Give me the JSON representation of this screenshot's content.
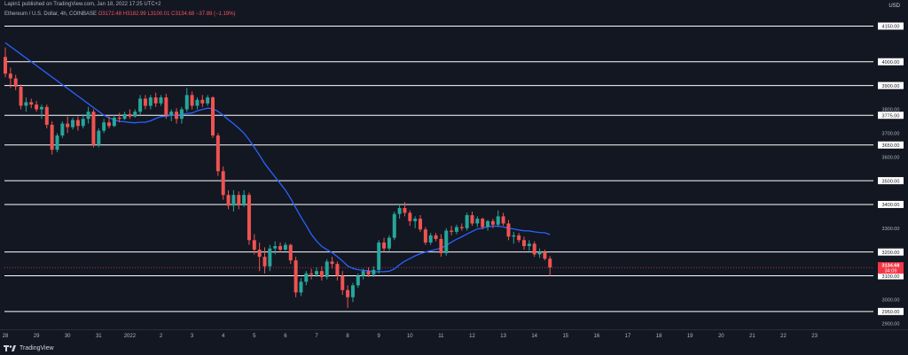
{
  "header": {
    "published_text": "Lapin1 published on TradingView.com, Jan 18, 2022 17:25 UTC+2"
  },
  "symbol": {
    "name": "Ethereum / U.S. Dollar, 4h, COINBASE",
    "open": "O3172.48",
    "high": "H3182.99",
    "low": "L3100.01",
    "close": "C3134.68",
    "change": "−37.89 (−1.19%)"
  },
  "price_axis": {
    "currency": "USD",
    "tick_labels": [
      {
        "price": 4150,
        "label": "4150.00"
      },
      {
        "price": 4000,
        "label": "4000.00"
      },
      {
        "price": 3900,
        "label": "3900.00"
      },
      {
        "price": 3800,
        "label": "3800.00"
      },
      {
        "price": 3775,
        "label": "3775.00"
      },
      {
        "price": 3700,
        "label": "3700.00"
      },
      {
        "price": 3650,
        "label": "3650.00"
      },
      {
        "price": 3600,
        "label": "3600.00"
      },
      {
        "price": 3500,
        "label": "3500.00"
      },
      {
        "price": 3400,
        "label": "3400.00"
      },
      {
        "price": 3300,
        "label": "3300.00"
      },
      {
        "price": 3200,
        "label": "3200.00"
      },
      {
        "price": 3100,
        "label": "3100.00"
      },
      {
        "price": 3000,
        "label": "3000.00"
      },
      {
        "price": 2950,
        "label": "2950.00"
      },
      {
        "price": 2900,
        "label": "2900.00"
      }
    ],
    "boxed_levels": [
      4150,
      4000,
      3900,
      3775,
      3650,
      3500,
      3400,
      3200,
      3100,
      2950
    ],
    "current_price_label": "3134.68",
    "countdown_label": "34:09"
  },
  "time_axis": {
    "labels": [
      {
        "label": "28",
        "idx": 0
      },
      {
        "label": "29",
        "idx": 6
      },
      {
        "label": "30",
        "idx": 12
      },
      {
        "label": "31",
        "idx": 18
      },
      {
        "label": "2022",
        "idx": 24
      },
      {
        "label": "2",
        "idx": 30
      },
      {
        "label": "3",
        "idx": 36
      },
      {
        "label": "4",
        "idx": 42
      },
      {
        "label": "5",
        "idx": 48
      },
      {
        "label": "6",
        "idx": 54
      },
      {
        "label": "7",
        "idx": 60
      },
      {
        "label": "8",
        "idx": 66
      },
      {
        "label": "9",
        "idx": 72
      },
      {
        "label": "10",
        "idx": 78
      },
      {
        "label": "11",
        "idx": 84
      },
      {
        "label": "12",
        "idx": 90
      },
      {
        "label": "13",
        "idx": 96
      },
      {
        "label": "14",
        "idx": 102
      },
      {
        "label": "15",
        "idx": 108
      },
      {
        "label": "16",
        "idx": 114
      },
      {
        "label": "17",
        "idx": 120
      },
      {
        "label": "18",
        "idx": 126
      },
      {
        "label": "19",
        "idx": 132
      },
      {
        "label": "20",
        "idx": 138
      },
      {
        "label": "21",
        "idx": 144
      },
      {
        "label": "22",
        "idx": 150
      },
      {
        "label": "23",
        "idx": 156
      }
    ]
  },
  "footer": {
    "brand": "TradingView"
  },
  "colors": {
    "background": "#131722",
    "up": "#26a69a",
    "down": "#ef5350",
    "ma_line": "#2962ff",
    "level_line": "#ffffff",
    "price_tag": "#f23645"
  },
  "chart_data": {
    "type": "candlestick",
    "title": "Ethereum / U.S. Dollar, 4h, COINBASE",
    "ylim": [
      2900,
      4200
    ],
    "horizontal_levels": [
      4150,
      4000,
      3900,
      3775,
      3650,
      3500,
      3400,
      3200,
      3100,
      2950
    ],
    "candles": [
      {
        "o": 4020,
        "h": 4060,
        "l": 3935,
        "c": 3950
      },
      {
        "o": 3950,
        "h": 3975,
        "l": 3890,
        "c": 3930
      },
      {
        "o": 3930,
        "h": 3945,
        "l": 3880,
        "c": 3895
      },
      {
        "o": 3895,
        "h": 3905,
        "l": 3800,
        "c": 3815
      },
      {
        "o": 3815,
        "h": 3850,
        "l": 3790,
        "c": 3830
      },
      {
        "o": 3830,
        "h": 3845,
        "l": 3805,
        "c": 3820
      },
      {
        "o": 3820,
        "h": 3835,
        "l": 3790,
        "c": 3800
      },
      {
        "o": 3800,
        "h": 3820,
        "l": 3760,
        "c": 3810
      },
      {
        "o": 3810,
        "h": 3820,
        "l": 3720,
        "c": 3735
      },
      {
        "o": 3735,
        "h": 3750,
        "l": 3610,
        "c": 3630
      },
      {
        "o": 3630,
        "h": 3700,
        "l": 3620,
        "c": 3690
      },
      {
        "o": 3690,
        "h": 3750,
        "l": 3680,
        "c": 3740
      },
      {
        "o": 3740,
        "h": 3770,
        "l": 3700,
        "c": 3725
      },
      {
        "o": 3725,
        "h": 3765,
        "l": 3715,
        "c": 3755
      },
      {
        "o": 3755,
        "h": 3770,
        "l": 3710,
        "c": 3730
      },
      {
        "o": 3730,
        "h": 3780,
        "l": 3720,
        "c": 3760
      },
      {
        "o": 3760,
        "h": 3810,
        "l": 3740,
        "c": 3790
      },
      {
        "o": 3790,
        "h": 3800,
        "l": 3640,
        "c": 3650
      },
      {
        "o": 3650,
        "h": 3720,
        "l": 3640,
        "c": 3710
      },
      {
        "o": 3710,
        "h": 3760,
        "l": 3700,
        "c": 3745
      },
      {
        "o": 3745,
        "h": 3770,
        "l": 3720,
        "c": 3730
      },
      {
        "o": 3730,
        "h": 3775,
        "l": 3725,
        "c": 3765
      },
      {
        "o": 3765,
        "h": 3785,
        "l": 3745,
        "c": 3760
      },
      {
        "o": 3760,
        "h": 3790,
        "l": 3755,
        "c": 3780
      },
      {
        "o": 3780,
        "h": 3800,
        "l": 3760,
        "c": 3770
      },
      {
        "o": 3770,
        "h": 3800,
        "l": 3765,
        "c": 3790
      },
      {
        "o": 3790,
        "h": 3860,
        "l": 3775,
        "c": 3845
      },
      {
        "o": 3845,
        "h": 3860,
        "l": 3800,
        "c": 3815
      },
      {
        "o": 3815,
        "h": 3860,
        "l": 3800,
        "c": 3850
      },
      {
        "o": 3850,
        "h": 3870,
        "l": 3810,
        "c": 3825
      },
      {
        "o": 3825,
        "h": 3860,
        "l": 3815,
        "c": 3850
      },
      {
        "o": 3850,
        "h": 3865,
        "l": 3760,
        "c": 3775
      },
      {
        "o": 3775,
        "h": 3800,
        "l": 3750,
        "c": 3790
      },
      {
        "o": 3790,
        "h": 3805,
        "l": 3740,
        "c": 3760
      },
      {
        "o": 3760,
        "h": 3810,
        "l": 3740,
        "c": 3800
      },
      {
        "o": 3800,
        "h": 3890,
        "l": 3790,
        "c": 3860
      },
      {
        "o": 3860,
        "h": 3875,
        "l": 3800,
        "c": 3815
      },
      {
        "o": 3815,
        "h": 3850,
        "l": 3800,
        "c": 3840
      },
      {
        "o": 3840,
        "h": 3860,
        "l": 3810,
        "c": 3825
      },
      {
        "o": 3825,
        "h": 3860,
        "l": 3815,
        "c": 3850
      },
      {
        "o": 3850,
        "h": 3855,
        "l": 3680,
        "c": 3690
      },
      {
        "o": 3690,
        "h": 3700,
        "l": 3520,
        "c": 3540
      },
      {
        "o": 3540,
        "h": 3560,
        "l": 3420,
        "c": 3440
      },
      {
        "o": 3440,
        "h": 3460,
        "l": 3380,
        "c": 3395
      },
      {
        "o": 3395,
        "h": 3460,
        "l": 3370,
        "c": 3440
      },
      {
        "o": 3440,
        "h": 3455,
        "l": 3380,
        "c": 3400
      },
      {
        "o": 3400,
        "h": 3460,
        "l": 3390,
        "c": 3440
      },
      {
        "o": 3440,
        "h": 3450,
        "l": 3230,
        "c": 3250
      },
      {
        "o": 3250,
        "h": 3275,
        "l": 3190,
        "c": 3210
      },
      {
        "o": 3210,
        "h": 3240,
        "l": 3120,
        "c": 3180
      },
      {
        "o": 3180,
        "h": 3220,
        "l": 3110,
        "c": 3140
      },
      {
        "o": 3140,
        "h": 3230,
        "l": 3120,
        "c": 3215
      },
      {
        "o": 3215,
        "h": 3245,
        "l": 3190,
        "c": 3225
      },
      {
        "o": 3225,
        "h": 3240,
        "l": 3200,
        "c": 3210
      },
      {
        "o": 3210,
        "h": 3240,
        "l": 3205,
        "c": 3230
      },
      {
        "o": 3230,
        "h": 3235,
        "l": 3150,
        "c": 3165
      },
      {
        "o": 3165,
        "h": 3180,
        "l": 3010,
        "c": 3030
      },
      {
        "o": 3030,
        "h": 3090,
        "l": 3015,
        "c": 3075
      },
      {
        "o": 3075,
        "h": 3120,
        "l": 3060,
        "c": 3110
      },
      {
        "o": 3110,
        "h": 3130,
        "l": 3085,
        "c": 3105
      },
      {
        "o": 3105,
        "h": 3135,
        "l": 3095,
        "c": 3120
      },
      {
        "o": 3120,
        "h": 3140,
        "l": 3080,
        "c": 3095
      },
      {
        "o": 3095,
        "h": 3170,
        "l": 3085,
        "c": 3160
      },
      {
        "o": 3160,
        "h": 3180,
        "l": 3130,
        "c": 3150
      },
      {
        "o": 3150,
        "h": 3160,
        "l": 3080,
        "c": 3100
      },
      {
        "o": 3100,
        "h": 3120,
        "l": 3020,
        "c": 3040
      },
      {
        "o": 3040,
        "h": 3060,
        "l": 2965,
        "c": 3010
      },
      {
        "o": 3010,
        "h": 3070,
        "l": 2990,
        "c": 3060
      },
      {
        "o": 3060,
        "h": 3110,
        "l": 3050,
        "c": 3100
      },
      {
        "o": 3100,
        "h": 3130,
        "l": 3085,
        "c": 3120
      },
      {
        "o": 3120,
        "h": 3135,
        "l": 3095,
        "c": 3105
      },
      {
        "o": 3105,
        "h": 3140,
        "l": 3095,
        "c": 3125
      },
      {
        "o": 3125,
        "h": 3250,
        "l": 3110,
        "c": 3240
      },
      {
        "o": 3240,
        "h": 3260,
        "l": 3200,
        "c": 3215
      },
      {
        "o": 3215,
        "h": 3270,
        "l": 3205,
        "c": 3260
      },
      {
        "o": 3260,
        "h": 3370,
        "l": 3250,
        "c": 3360
      },
      {
        "o": 3360,
        "h": 3400,
        "l": 3340,
        "c": 3385
      },
      {
        "o": 3385,
        "h": 3410,
        "l": 3350,
        "c": 3365
      },
      {
        "o": 3365,
        "h": 3375,
        "l": 3310,
        "c": 3330
      },
      {
        "o": 3330,
        "h": 3350,
        "l": 3300,
        "c": 3340
      },
      {
        "o": 3340,
        "h": 3355,
        "l": 3285,
        "c": 3295
      },
      {
        "o": 3295,
        "h": 3305,
        "l": 3230,
        "c": 3240
      },
      {
        "o": 3240,
        "h": 3280,
        "l": 3230,
        "c": 3270
      },
      {
        "o": 3270,
        "h": 3280,
        "l": 3245,
        "c": 3255
      },
      {
        "o": 3255,
        "h": 3275,
        "l": 3180,
        "c": 3195
      },
      {
        "o": 3195,
        "h": 3300,
        "l": 3185,
        "c": 3290
      },
      {
        "o": 3290,
        "h": 3310,
        "l": 3270,
        "c": 3285
      },
      {
        "o": 3285,
        "h": 3315,
        "l": 3275,
        "c": 3305
      },
      {
        "o": 3305,
        "h": 3320,
        "l": 3290,
        "c": 3300
      },
      {
        "o": 3300,
        "h": 3365,
        "l": 3290,
        "c": 3355
      },
      {
        "o": 3355,
        "h": 3370,
        "l": 3310,
        "c": 3320
      },
      {
        "o": 3320,
        "h": 3350,
        "l": 3305,
        "c": 3340
      },
      {
        "o": 3340,
        "h": 3345,
        "l": 3295,
        "c": 3305
      },
      {
        "o": 3305,
        "h": 3335,
        "l": 3290,
        "c": 3330
      },
      {
        "o": 3330,
        "h": 3340,
        "l": 3300,
        "c": 3315
      },
      {
        "o": 3315,
        "h": 3375,
        "l": 3305,
        "c": 3350
      },
      {
        "o": 3350,
        "h": 3365,
        "l": 3310,
        "c": 3320
      },
      {
        "o": 3320,
        "h": 3335,
        "l": 3250,
        "c": 3265
      },
      {
        "o": 3265,
        "h": 3285,
        "l": 3235,
        "c": 3270
      },
      {
        "o": 3270,
        "h": 3280,
        "l": 3240,
        "c": 3250
      },
      {
        "o": 3250,
        "h": 3265,
        "l": 3210,
        "c": 3225
      },
      {
        "o": 3225,
        "h": 3250,
        "l": 3205,
        "c": 3235
      },
      {
        "o": 3235,
        "h": 3245,
        "l": 3180,
        "c": 3190
      },
      {
        "o": 3190,
        "h": 3215,
        "l": 3175,
        "c": 3200
      },
      {
        "o": 3200,
        "h": 3210,
        "l": 3165,
        "c": 3172
      },
      {
        "o": 3172,
        "h": 3183,
        "l": 3100,
        "c": 3135
      }
    ],
    "ma_period": 20
  }
}
